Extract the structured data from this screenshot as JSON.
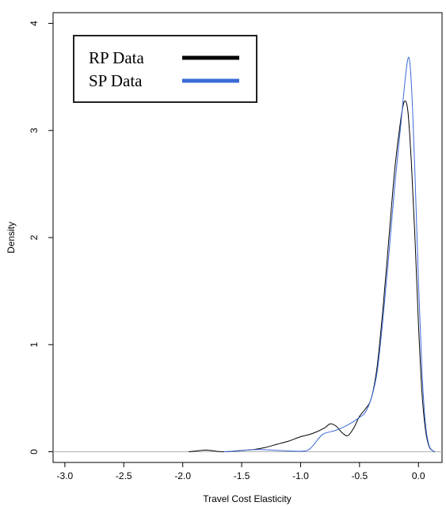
{
  "chart_data": {
    "type": "line",
    "xlabel": "Travel Cost Elasticity",
    "ylabel": "Density",
    "xlim": [
      -3.1,
      0.2
    ],
    "ylim": [
      -0.1,
      4.1
    ],
    "x_ticks": [
      -3.0,
      -2.5,
      -2.0,
      -1.5,
      -1.0,
      -0.5,
      0.0
    ],
    "x_tick_labels": [
      "-3.0",
      "-2.5",
      "-2.0",
      "-1.5",
      "-1.0",
      "-0.5",
      "0.0"
    ],
    "y_ticks": [
      0,
      1,
      2,
      3,
      4
    ],
    "y_tick_labels": [
      "0",
      "1",
      "2",
      "3",
      "4"
    ],
    "baseline": 0,
    "legend": {
      "position": "top-left",
      "entries": [
        {
          "label": "RP Data",
          "color": "#000000"
        },
        {
          "label": "SP Data",
          "color": "#3b6bd6"
        }
      ]
    },
    "series": [
      {
        "name": "RP Data",
        "color": "#000000",
        "points": [
          [
            -1.95,
            0.0
          ],
          [
            -1.9,
            0.005
          ],
          [
            -1.85,
            0.012
          ],
          [
            -1.8,
            0.015
          ],
          [
            -1.75,
            0.01
          ],
          [
            -1.7,
            0.003
          ],
          [
            -1.65,
            0.0
          ],
          [
            -1.6,
            0.003
          ],
          [
            -1.5,
            0.012
          ],
          [
            -1.4,
            0.02
          ],
          [
            -1.3,
            0.04
          ],
          [
            -1.2,
            0.07
          ],
          [
            -1.1,
            0.1
          ],
          [
            -1.0,
            0.14
          ],
          [
            -0.9,
            0.17
          ],
          [
            -0.8,
            0.22
          ],
          [
            -0.75,
            0.26
          ],
          [
            -0.7,
            0.24
          ],
          [
            -0.65,
            0.18
          ],
          [
            -0.6,
            0.15
          ],
          [
            -0.55,
            0.22
          ],
          [
            -0.5,
            0.33
          ],
          [
            -0.45,
            0.4
          ],
          [
            -0.4,
            0.5
          ],
          [
            -0.35,
            0.8
          ],
          [
            -0.3,
            1.35
          ],
          [
            -0.25,
            2.0
          ],
          [
            -0.2,
            2.65
          ],
          [
            -0.15,
            3.1
          ],
          [
            -0.12,
            3.27
          ],
          [
            -0.09,
            3.18
          ],
          [
            -0.06,
            2.7
          ],
          [
            -0.03,
            2.0
          ],
          [
            0.0,
            1.2
          ],
          [
            0.03,
            0.55
          ],
          [
            0.06,
            0.2
          ],
          [
            0.09,
            0.05
          ],
          [
            0.12,
            0.01
          ],
          [
            0.14,
            0.0
          ]
        ]
      },
      {
        "name": "SP Data",
        "color": "#3b6bd6",
        "points": [
          [
            -1.65,
            0.0
          ],
          [
            -1.55,
            0.005
          ],
          [
            -1.45,
            0.015
          ],
          [
            -1.35,
            0.02
          ],
          [
            -1.25,
            0.015
          ],
          [
            -1.15,
            0.01
          ],
          [
            -1.05,
            0.005
          ],
          [
            -0.95,
            0.01
          ],
          [
            -0.9,
            0.05
          ],
          [
            -0.85,
            0.12
          ],
          [
            -0.8,
            0.17
          ],
          [
            -0.7,
            0.2
          ],
          [
            -0.6,
            0.25
          ],
          [
            -0.5,
            0.32
          ],
          [
            -0.45,
            0.37
          ],
          [
            -0.4,
            0.5
          ],
          [
            -0.35,
            0.75
          ],
          [
            -0.3,
            1.25
          ],
          [
            -0.25,
            1.85
          ],
          [
            -0.2,
            2.5
          ],
          [
            -0.15,
            3.05
          ],
          [
            -0.12,
            3.4
          ],
          [
            -0.09,
            3.67
          ],
          [
            -0.07,
            3.6
          ],
          [
            -0.05,
            3.2
          ],
          [
            -0.03,
            2.6
          ],
          [
            0.0,
            1.6
          ],
          [
            0.03,
            0.75
          ],
          [
            0.06,
            0.25
          ],
          [
            0.09,
            0.06
          ],
          [
            0.12,
            0.01
          ],
          [
            0.14,
            0.0
          ]
        ]
      }
    ]
  }
}
